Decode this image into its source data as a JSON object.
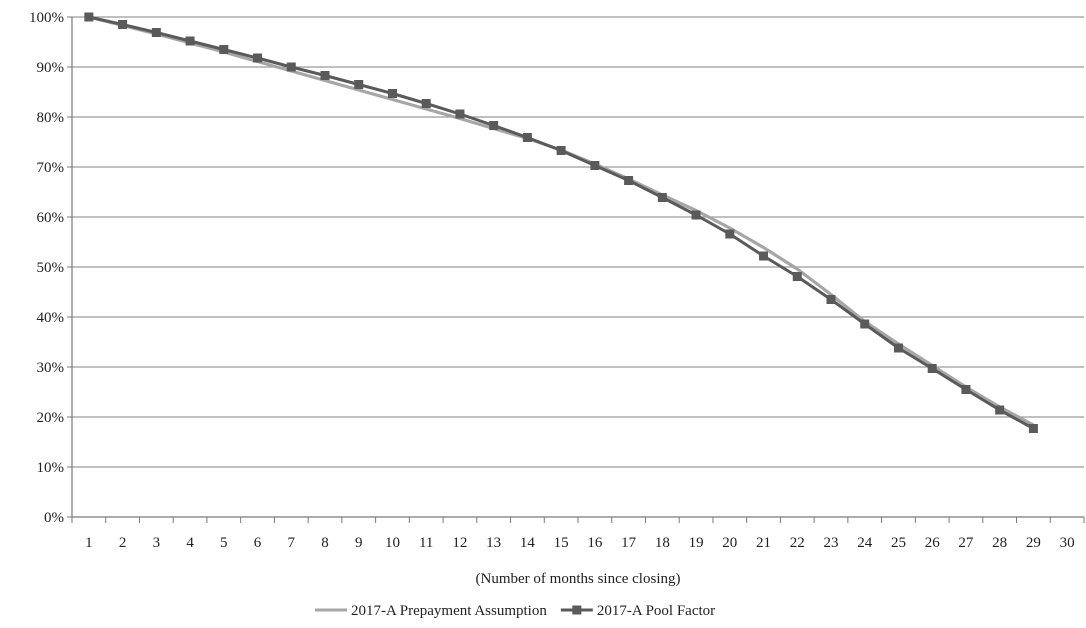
{
  "chart_data": {
    "type": "line",
    "title": "",
    "xlabel": "(Number of months since closing)",
    "ylabel": "",
    "x": [
      1,
      2,
      3,
      4,
      5,
      6,
      7,
      8,
      9,
      10,
      11,
      12,
      13,
      14,
      15,
      16,
      17,
      18,
      19,
      20,
      21,
      22,
      23,
      24,
      25,
      26,
      27,
      28,
      29,
      30
    ],
    "ylim": [
      0,
      100
    ],
    "y_ticks": [
      "0%",
      "10%",
      "20%",
      "30%",
      "40%",
      "50%",
      "60%",
      "70%",
      "80%",
      "90%",
      "100%"
    ],
    "grid": "horizontal",
    "legend_position": "bottom",
    "series": [
      {
        "name": "2017-A Prepayment Assumption",
        "color": "#a6a6a6",
        "marker": "none",
        "x": [
          1,
          2,
          3,
          4,
          5,
          6,
          7,
          8,
          9,
          10,
          11,
          12,
          13,
          14,
          15,
          16,
          17,
          18,
          19,
          20,
          21,
          22,
          23,
          24,
          25,
          26,
          27,
          28,
          29
        ],
        "values": [
          100,
          98.3,
          96.6,
          94.8,
          93.0,
          91.1,
          89.2,
          87.3,
          85.4,
          83.5,
          81.6,
          79.7,
          77.7,
          75.7,
          73.4,
          70.6,
          67.6,
          64.4,
          61.3,
          57.8,
          53.9,
          49.6,
          44.5,
          39.1,
          34.6,
          30.3,
          26.0,
          22.0,
          18.4
        ]
      },
      {
        "name": "2017-A Pool Factor",
        "color": "#5a5a5a",
        "marker": "square",
        "x": [
          1,
          2,
          3,
          4,
          5,
          6,
          7,
          8,
          9,
          10,
          11,
          12,
          13,
          14,
          15,
          16,
          17,
          18,
          19,
          20,
          21,
          22,
          23,
          24,
          25,
          26,
          27,
          28,
          29
        ],
        "values": [
          100,
          98.5,
          96.9,
          95.2,
          93.5,
          91.8,
          90.0,
          88.3,
          86.5,
          84.7,
          82.7,
          80.6,
          78.3,
          75.9,
          73.3,
          70.3,
          67.3,
          63.9,
          60.4,
          56.6,
          52.2,
          48.1,
          43.5,
          38.6,
          33.8,
          29.7,
          25.5,
          21.4,
          17.7
        ]
      }
    ]
  }
}
